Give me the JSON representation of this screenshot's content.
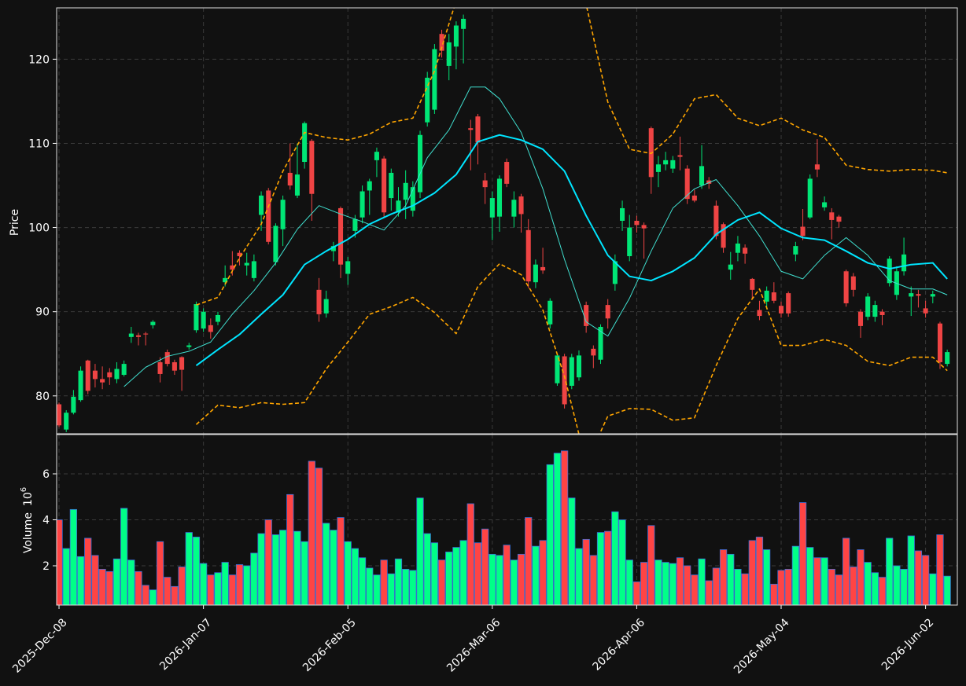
{
  "chart_data": {
    "type": "candlestick",
    "ylabel": "Price",
    "volume_axis_label": {
      "text": "Volume",
      "base": "10",
      "exponent": "6"
    },
    "grid": true,
    "colors": {
      "up": "#00e676",
      "down": "#ef4444",
      "volume_up": "#00ff88",
      "volume_down": "#ff4444",
      "volume_edge": "#3a6fd8"
    },
    "xlim": [
      -0.33,
      124.4
    ],
    "xticks": [
      {
        "value": 0,
        "label": "2025-Dec-08"
      },
      {
        "value": 20,
        "label": "2026-Jan-07"
      },
      {
        "value": 40,
        "label": "2026-Feb-05"
      },
      {
        "value": 60,
        "label": "2026-Mar-06"
      },
      {
        "value": 80,
        "label": "2026-Apr-06"
      },
      {
        "value": 100,
        "label": "2026-May-04"
      },
      {
        "value": 120,
        "label": "2026-Jun-02"
      }
    ],
    "ylim": [
      75.5,
      126.1
    ],
    "yticks": [
      80,
      90,
      100,
      110,
      120
    ],
    "volume_ylim": [
      0.29,
      7.71
    ],
    "volume_yticks": [
      2,
      4,
      6
    ],
    "open": [
      79,
      76,
      78,
      79.5,
      84.2,
      83,
      82,
      82.8,
      82,
      82.5,
      87,
      87.2,
      87.4,
      88.4,
      84,
      85.2,
      84,
      84.6,
      85.8,
      87.8,
      88,
      88.4,
      88.8,
      93.5,
      95.5,
      97,
      95.5,
      94,
      101.5,
      104.4,
      95.9,
      99.8,
      106.5,
      103.8,
      107.8,
      110.3,
      92.6,
      89.8,
      97.2,
      102.3,
      94.5,
      99.6,
      101.2,
      104.4,
      108,
      108.2,
      103.5,
      101.8,
      103.3,
      102,
      104.2,
      112.5,
      114,
      123,
      119.2,
      121.5,
      123.6,
      111.8,
      113.2,
      105.6,
      101.2,
      101.3,
      107.8,
      101.3,
      103.7,
      99.7,
      93.5,
      95.3,
      88.5,
      81.5,
      84.7,
      81.2,
      82.2,
      90.8,
      85.6,
      84.3,
      90.8,
      93.3,
      100.8,
      96.6,
      100.8,
      100.3,
      111.8,
      106.6,
      107.5,
      107,
      108.6,
      107,
      103.8,
      105,
      105.6,
      102.6,
      100.4,
      95,
      97,
      97.6,
      93.9,
      90.2,
      91.2,
      92.3,
      90.7,
      92.2,
      96.8,
      100.1,
      101.2,
      107.5,
      102.4,
      101.8,
      101.3,
      94.8,
      94.2,
      90,
      89.4,
      89.4,
      90,
      93.4,
      92,
      94.8,
      91.8,
      92.1,
      90.4,
      91.8,
      88.6,
      83.8
    ],
    "high": [
      79.2,
      78.3,
      80.7,
      83.5,
      84.3,
      83.8,
      83.5,
      83.3,
      84,
      84.2,
      88.2,
      87.5,
      87.6,
      89,
      84.6,
      85.5,
      84.3,
      84.7,
      86.3,
      91.2,
      90.4,
      89.2,
      90,
      95.5,
      97.2,
      97.3,
      97,
      96.8,
      104.3,
      104.7,
      100.5,
      103.8,
      110,
      110,
      112.6,
      110.5,
      94,
      92.5,
      98.3,
      102.5,
      96.5,
      101.5,
      105,
      105.8,
      109.5,
      108.5,
      107,
      104.8,
      106.8,
      105.5,
      111.5,
      118.5,
      121.8,
      123.5,
      123,
      124.5,
      125.3,
      112.8,
      113.5,
      106.5,
      104.3,
      106.2,
      108.2,
      104.3,
      104,
      101,
      96.2,
      97.6,
      91.6,
      85,
      85,
      85,
      85.4,
      91.2,
      86,
      88.5,
      91.5,
      96.8,
      103.2,
      101.5,
      101.4,
      100.6,
      112,
      108.5,
      109,
      108.5,
      110.8,
      107.4,
      104.5,
      109.8,
      106,
      103.2,
      100.6,
      97.1,
      99,
      98,
      94,
      91.3,
      93,
      93.5,
      91.2,
      92.4,
      98.3,
      102.2,
      106.3,
      110.5,
      103.7,
      102.3,
      101.5,
      95,
      94.6,
      90.3,
      92.2,
      91.3,
      90.3,
      96.6,
      95.4,
      98.8,
      93,
      92.6,
      91.3,
      92.5,
      88.8,
      85.5
    ],
    "low": [
      76.3,
      75.7,
      77.8,
      79.3,
      80.2,
      81,
      80.8,
      81.3,
      81.5,
      82.3,
      86.3,
      86,
      86,
      88,
      81.6,
      83.5,
      82.5,
      80.6,
      85.5,
      87.5,
      87.6,
      86.8,
      88.4,
      93,
      94.3,
      95.5,
      94.3,
      93.6,
      99.6,
      98,
      95.5,
      97.8,
      104.5,
      103.5,
      107,
      100.8,
      88.8,
      89.3,
      96,
      94,
      93.2,
      98.8,
      100.5,
      101.5,
      106,
      101.2,
      102,
      101.3,
      101,
      101.3,
      103.5,
      112,
      113.5,
      120.2,
      117.5,
      118.8,
      119.5,
      106.8,
      107.5,
      102.8,
      98.5,
      99.5,
      104.8,
      100,
      99.4,
      92.8,
      92.8,
      94.5,
      88,
      81.2,
      78.5,
      80.8,
      81.8,
      87.5,
      83.3,
      83.8,
      88,
      92.5,
      99.6,
      96,
      99.4,
      96.3,
      104,
      104.8,
      106.8,
      106.5,
      106.8,
      102.8,
      103,
      104.6,
      104.6,
      98.6,
      97,
      93.8,
      96,
      95.7,
      91.6,
      89,
      90.3,
      91,
      89.3,
      89.4,
      96,
      98.5,
      101,
      106,
      102,
      98.6,
      100,
      90.6,
      91.8,
      86.9,
      89,
      88.8,
      88.4,
      93,
      91.4,
      94.3,
      89.5,
      90.5,
      89.3,
      91,
      83.2,
      83.5
    ],
    "close": [
      76.5,
      78,
      79.9,
      83,
      80.6,
      82,
      81.6,
      82.2,
      83.2,
      83.8,
      87.4,
      87,
      87.3,
      88.8,
      82.6,
      83.8,
      83,
      83.1,
      86,
      90.9,
      90,
      87.6,
      89.6,
      94,
      95,
      96.6,
      95.8,
      96,
      103.8,
      98.3,
      100.2,
      103.3,
      105,
      106.3,
      112.4,
      104,
      89.7,
      91.5,
      97.8,
      95.6,
      96,
      101,
      104.3,
      105.5,
      109,
      101.8,
      106.5,
      103.2,
      105.3,
      104.8,
      111,
      117.8,
      121.2,
      121,
      122,
      124,
      124.8,
      111.6,
      110.1,
      104.8,
      103.5,
      105.8,
      105.2,
      103.3,
      101.6,
      93.6,
      95.6,
      94.9,
      91.3,
      84.8,
      79,
      84.6,
      84.8,
      88.3,
      84.8,
      88.2,
      89.2,
      96,
      102.3,
      100,
      100.3,
      99.9,
      106,
      107.5,
      108,
      108,
      108.4,
      103.4,
      103.2,
      107.3,
      105.2,
      99,
      97.6,
      95.6,
      98.1,
      96.9,
      92.6,
      89.5,
      92.5,
      91.3,
      89.8,
      89.8,
      97.8,
      99,
      105.8,
      106.9,
      103,
      100.9,
      100.7,
      91,
      92.6,
      88.3,
      91.8,
      90.8,
      89.6,
      96.3,
      94.8,
      96.8,
      92.2,
      91.9,
      89.8,
      92.1,
      84,
      85.2
    ],
    "volume": [
      4.0,
      2.75,
      4.45,
      2.4,
      3.2,
      2.45,
      1.85,
      1.75,
      2.3,
      4.5,
      2.25,
      1.75,
      1.15,
      0.95,
      3.05,
      1.5,
      1.1,
      1.95,
      3.45,
      3.25,
      2.1,
      1.6,
      1.7,
      2.15,
      1.6,
      2.05,
      2.0,
      2.55,
      3.4,
      4.0,
      3.35,
      3.55,
      5.1,
      3.5,
      3.05,
      6.55,
      6.25,
      3.85,
      3.55,
      4.1,
      3.05,
      2.75,
      2.35,
      1.9,
      1.6,
      2.25,
      1.65,
      2.3,
      1.85,
      1.8,
      4.95,
      3.4,
      3.0,
      2.25,
      2.6,
      2.8,
      3.1,
      4.7,
      3.0,
      3.6,
      2.5,
      2.45,
      2.9,
      2.25,
      2.5,
      4.1,
      2.85,
      3.1,
      6.4,
      6.9,
      7.0,
      4.95,
      2.75,
      3.15,
      2.45,
      3.45,
      3.5,
      4.35,
      4.0,
      2.25,
      1.3,
      2.15,
      3.75,
      2.25,
      2.15,
      2.1,
      2.35,
      2.0,
      1.6,
      2.3,
      1.35,
      1.9,
      2.7,
      2.5,
      1.85,
      1.65,
      3.1,
      3.25,
      2.7,
      1.2,
      1.8,
      1.85,
      2.85,
      4.75,
      2.8,
      2.35,
      2.35,
      1.85,
      1.6,
      3.2,
      1.95,
      2.7,
      2.15,
      1.7,
      1.5,
      3.2,
      2.0,
      1.85,
      3.3,
      2.65,
      2.45,
      1.65,
      3.35,
      1.55
    ],
    "overlays": [
      {
        "color": "#40e0d0",
        "width": 1,
        "dash": "none",
        "x": [
          9,
          12,
          15,
          18,
          21,
          24,
          27,
          30,
          33,
          36,
          39,
          42,
          45,
          48,
          51,
          54,
          57,
          59,
          61,
          64,
          67,
          70,
          73,
          76,
          79,
          82,
          85,
          88,
          91,
          94,
          97,
          100,
          103,
          106,
          109,
          112,
          115,
          118,
          121,
          123
        ],
        "values": [
          81.1,
          83.4,
          84.7,
          85.3,
          86.4,
          89.7,
          92.5,
          95.8,
          99.8,
          102.6,
          101.6,
          100.7,
          99.7,
          102.6,
          108.3,
          111.6,
          116.7,
          116.7,
          115.3,
          111.3,
          104.6,
          96.2,
          88.8,
          87.1,
          91.6,
          97.2,
          102.3,
          104.6,
          105.7,
          102.6,
          99,
          94.8,
          93.9,
          96.7,
          98.8,
          96.7,
          93.7,
          92.7,
          92.7,
          92
        ]
      },
      {
        "color": "#00e5ff",
        "width": 2,
        "dash": "none",
        "x": [
          19,
          22,
          25,
          28,
          31,
          34,
          37,
          40,
          43,
          46,
          49,
          52,
          55,
          58,
          61,
          64,
          67,
          70,
          73,
          76,
          79,
          82,
          85,
          88,
          91,
          94,
          97,
          100,
          103,
          106,
          109,
          112,
          115,
          118,
          121,
          123
        ],
        "values": [
          83.6,
          85.5,
          87.3,
          89.7,
          92,
          95.6,
          97.2,
          98.6,
          100.4,
          101.6,
          102.6,
          104.1,
          106.3,
          110.2,
          111,
          110.4,
          109.3,
          106.7,
          101.4,
          96.7,
          94.2,
          93.7,
          94.8,
          96.4,
          99.2,
          100.9,
          101.8,
          99.9,
          98.8,
          98.5,
          97.2,
          95.8,
          95.1,
          95.6,
          95.8,
          93.9
        ]
      },
      {
        "color": "#ffa500",
        "width": 1.6,
        "dash": "5 3",
        "x": [
          19,
          22,
          25,
          28,
          31,
          34,
          37,
          40,
          43,
          46,
          49,
          52,
          55,
          58,
          61,
          64,
          67,
          70,
          73,
          76,
          79,
          82,
          85,
          88,
          91,
          94,
          97,
          100,
          103,
          106,
          109,
          112,
          115,
          118,
          121,
          123
        ],
        "values": [
          90.8,
          91.7,
          96.4,
          100.4,
          106.7,
          111.3,
          110.7,
          110.4,
          111.1,
          112.5,
          113,
          118.6,
          127,
          131,
          133,
          134,
          133,
          130,
          126.5,
          114.9,
          109.3,
          108.8,
          111.1,
          115.3,
          115.8,
          113,
          112.1,
          113,
          111.6,
          110.7,
          107.4,
          106.9,
          106.7,
          106.9,
          106.8,
          106.5
        ]
      },
      {
        "color": "#ffa500",
        "width": 1.6,
        "dash": "5 3",
        "x": [
          19,
          22,
          25,
          28,
          31,
          34,
          37,
          40,
          43,
          46,
          49,
          52,
          55,
          58,
          61,
          64,
          67,
          70,
          73,
          76,
          79,
          82,
          85,
          88,
          91,
          94,
          97,
          100,
          103,
          106,
          109,
          112,
          115,
          118,
          121,
          123
        ],
        "values": [
          76.6,
          78.9,
          78.6,
          79.2,
          79,
          79.2,
          83.2,
          86.4,
          89.7,
          90.6,
          91.7,
          89.9,
          87.4,
          93,
          95.7,
          94.4,
          90.2,
          82.3,
          72,
          77.6,
          78.5,
          78.4,
          77.1,
          77.4,
          83.6,
          89.2,
          92.7,
          86,
          86,
          86.7,
          86,
          84.1,
          83.6,
          84.6,
          84.6,
          83
        ]
      }
    ]
  }
}
